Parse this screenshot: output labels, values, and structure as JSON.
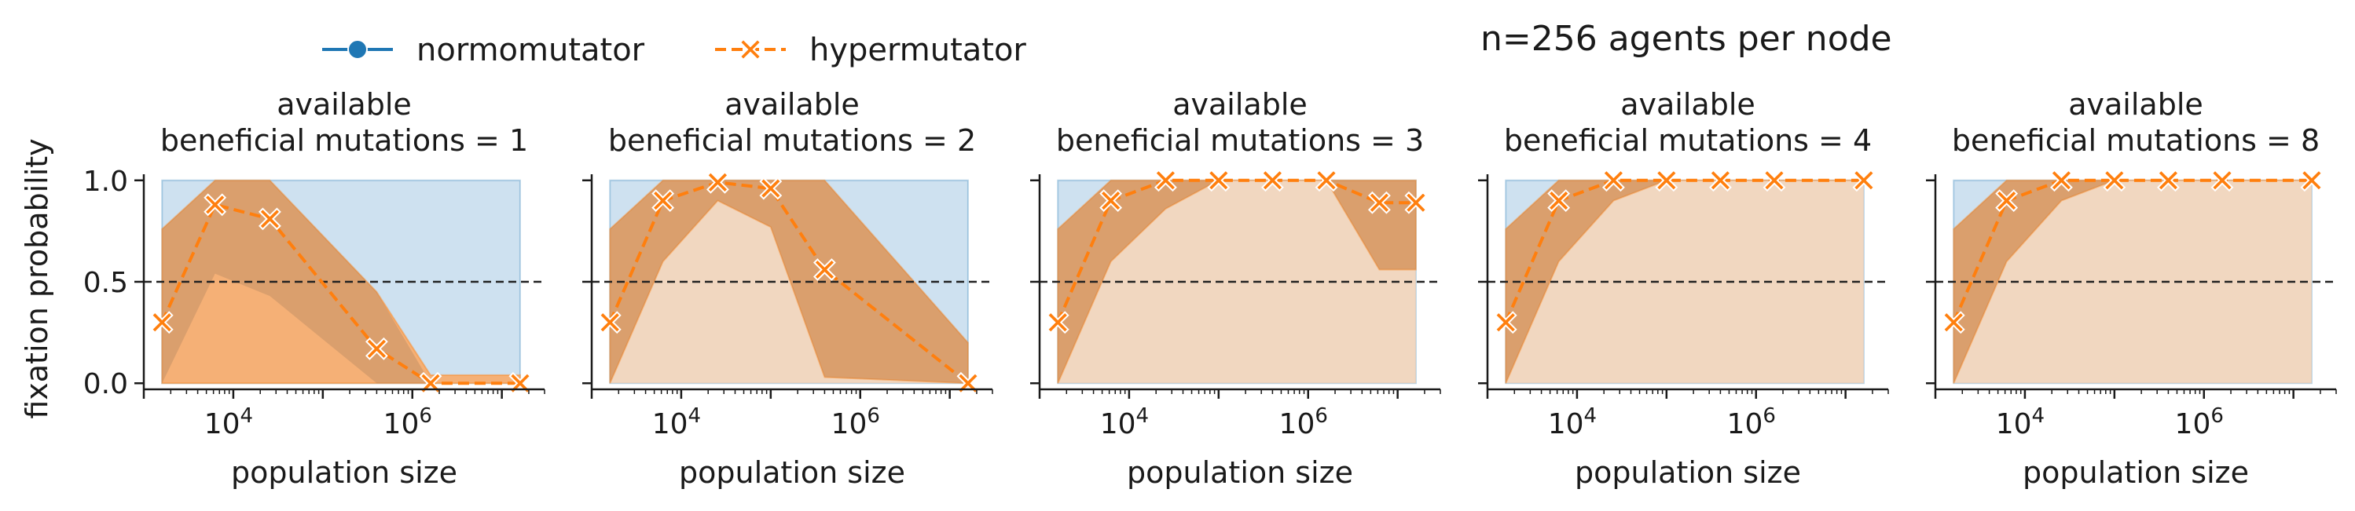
{
  "figure": {
    "suptitle": "n=256 agents per node",
    "ylabel": "fixation probability"
  },
  "legend": {
    "placement": "top-left",
    "items": [
      {
        "label": "normomutator",
        "color": "#1f77b4",
        "marker": "circle",
        "dash": "solid"
      },
      {
        "label": "hypermutator",
        "color": "#ff7f0e",
        "marker": "x",
        "dash": "dashed"
      }
    ]
  },
  "colors": {
    "normo": "#1f77b4",
    "hyper": "#ff7f0e",
    "normo_band": "#a6c8e4",
    "hyper_band": "#fcd3b0",
    "hyper_band_dark": "#f5a35e",
    "overlap_band": "#c89a78",
    "threshold": "#222222"
  },
  "chart_data": [
    {
      "type": "line",
      "title": "available\nbeneficial mutations = 1",
      "title_lines": [
        "available",
        "beneficial mutations = 1"
      ],
      "xlabel": "population size",
      "ylabel": "fixation probability",
      "xscale": "log",
      "xlim": [
        1000,
        30000000
      ],
      "ylim": [
        -0.03,
        1.03
      ],
      "yticks": [
        0.0,
        0.5,
        1.0
      ],
      "ytick_labels": [
        "0.0",
        "0.5",
        "1.0"
      ],
      "xticks": [
        10000,
        1000000
      ],
      "xtick_labels": [
        "10^4",
        "10^6"
      ],
      "threshold": 0.5,
      "x": [
        1600,
        6250,
        25600,
        100000,
        400000,
        1600000,
        6250000,
        16000000
      ],
      "series": [
        {
          "name": "hypermutator",
          "x": [
            1600,
            6250,
            25600,
            400000,
            1600000,
            16000000
          ],
          "y": [
            0.3,
            0.88,
            0.81,
            0.17,
            0.0,
            0.0
          ],
          "ci_outer": {
            "lower": [
              0.0,
              0.0,
              0.0,
              0.0,
              0.0,
              0.0
            ],
            "upper": [
              0.76,
              1.0,
              1.0,
              0.45,
              0.04,
              0.04
            ]
          },
          "ci_inner": {
            "lower": [
              0.0,
              0.54,
              0.43,
              0.0,
              0.0,
              0.0
            ],
            "upper": [
              0.76,
              1.0,
              1.0,
              0.45,
              0.0,
              0.0
            ]
          }
        },
        {
          "name": "normomutator",
          "band": {
            "lower": 0.0,
            "upper": 1.0
          }
        }
      ]
    },
    {
      "type": "line",
      "title": "available\nbeneficial mutations = 2",
      "title_lines": [
        "available",
        "beneficial mutations = 2"
      ],
      "xlabel": "population size",
      "xscale": "log",
      "xlim": [
        1000,
        30000000
      ],
      "ylim": [
        -0.03,
        1.03
      ],
      "yticks": [
        0.0,
        0.5,
        1.0
      ],
      "xticks": [
        10000,
        1000000
      ],
      "xtick_labels": [
        "10^4",
        "10^6"
      ],
      "threshold": 0.5,
      "series": [
        {
          "name": "hypermutator",
          "x": [
            1600,
            6250,
            25600,
            100000,
            400000,
            16000000
          ],
          "y": [
            0.3,
            0.9,
            0.99,
            0.96,
            0.56,
            0.0
          ],
          "ci_outer": {
            "lower": [
              0.0,
              0.6,
              0.9,
              0.77,
              0.03,
              0.0
            ],
            "upper": [
              0.76,
              1.0,
              1.0,
              1.0,
              1.0,
              0.2
            ]
          },
          "ci_inner": {
            "lower": [
              0.0,
              0.6,
              0.9,
              0.77,
              0.03,
              0.0
            ],
            "upper": [
              0.76,
              1.0,
              1.0,
              1.0,
              1.0,
              0.2
            ]
          }
        },
        {
          "name": "normomutator",
          "band": {
            "lower": 0.0,
            "upper": 1.0
          }
        }
      ]
    },
    {
      "type": "line",
      "title": "available\nbeneficial mutations = 3",
      "title_lines": [
        "available",
        "beneficial mutations = 3"
      ],
      "xlabel": "population size",
      "xscale": "log",
      "xlim": [
        1000,
        30000000
      ],
      "ylim": [
        -0.03,
        1.03
      ],
      "yticks": [
        0.0,
        0.5,
        1.0
      ],
      "xticks": [
        10000,
        1000000
      ],
      "xtick_labels": [
        "10^4",
        "10^6"
      ],
      "threshold": 0.5,
      "series": [
        {
          "name": "hypermutator",
          "x": [
            1600,
            6250,
            25600,
            100000,
            400000,
            1600000,
            6250000,
            16000000
          ],
          "y": [
            0.3,
            0.9,
            1.0,
            1.0,
            1.0,
            1.0,
            0.89,
            0.89
          ],
          "ci_outer": {
            "lower": [
              0.0,
              0.6,
              0.86,
              1.0,
              1.0,
              1.0,
              0.56,
              0.56
            ],
            "upper": [
              0.76,
              1.0,
              1.0,
              1.0,
              1.0,
              1.0,
              1.0,
              1.0
            ]
          },
          "ci_inner": {
            "lower": [
              0.0,
              0.6,
              0.86,
              1.0,
              1.0,
              1.0,
              0.56,
              0.56
            ],
            "upper": [
              0.76,
              1.0,
              1.0,
              1.0,
              1.0,
              1.0,
              1.0,
              1.0
            ]
          }
        },
        {
          "name": "normomutator",
          "band": {
            "lower": 0.0,
            "upper": 1.0
          }
        }
      ]
    },
    {
      "type": "line",
      "title": "available\nbeneficial mutations = 4",
      "title_lines": [
        "available",
        "beneficial mutations = 4"
      ],
      "xlabel": "population size",
      "xscale": "log",
      "xlim": [
        1000,
        30000000
      ],
      "ylim": [
        -0.03,
        1.03
      ],
      "yticks": [
        0.0,
        0.5,
        1.0
      ],
      "xticks": [
        10000,
        1000000
      ],
      "xtick_labels": [
        "10^4",
        "10^6"
      ],
      "threshold": 0.5,
      "series": [
        {
          "name": "hypermutator",
          "x": [
            1600,
            6250,
            25600,
            100000,
            400000,
            1600000,
            16000000
          ],
          "y": [
            0.3,
            0.9,
            1.0,
            1.0,
            1.0,
            1.0,
            1.0
          ],
          "ci_outer": {
            "lower": [
              0.0,
              0.6,
              0.9,
              1.0,
              1.0,
              1.0,
              1.0
            ],
            "upper": [
              0.76,
              1.0,
              1.0,
              1.0,
              1.0,
              1.0,
              1.0
            ]
          },
          "ci_inner": {
            "lower": [
              0.0,
              0.6,
              0.9,
              1.0,
              1.0,
              1.0,
              1.0
            ],
            "upper": [
              0.76,
              1.0,
              1.0,
              1.0,
              1.0,
              1.0,
              1.0
            ]
          }
        },
        {
          "name": "normomutator",
          "band": {
            "lower": 0.0,
            "upper": 1.0
          }
        }
      ]
    },
    {
      "type": "line",
      "title": "available\nbeneficial mutations = 8",
      "title_lines": [
        "available",
        "beneficial mutations = 8"
      ],
      "xlabel": "population size",
      "xscale": "log",
      "xlim": [
        1000,
        30000000
      ],
      "ylim": [
        -0.03,
        1.03
      ],
      "yticks": [
        0.0,
        0.5,
        1.0
      ],
      "xticks": [
        10000,
        1000000
      ],
      "xtick_labels": [
        "10^4",
        "10^6"
      ],
      "threshold": 0.5,
      "series": [
        {
          "name": "hypermutator",
          "x": [
            1600,
            6250,
            25600,
            100000,
            400000,
            1600000,
            16000000
          ],
          "y": [
            0.3,
            0.9,
            1.0,
            1.0,
            1.0,
            1.0,
            1.0
          ],
          "ci_outer": {
            "lower": [
              0.0,
              0.6,
              0.9,
              1.0,
              1.0,
              1.0,
              1.0
            ],
            "upper": [
              0.76,
              1.0,
              1.0,
              1.0,
              1.0,
              1.0,
              1.0
            ]
          },
          "ci_inner": {
            "lower": [
              0.0,
              0.6,
              0.9,
              1.0,
              1.0,
              1.0,
              1.0
            ],
            "upper": [
              0.76,
              1.0,
              1.0,
              1.0,
              1.0,
              1.0,
              1.0
            ]
          }
        },
        {
          "name": "normomutator",
          "band": {
            "lower": 0.0,
            "upper": 1.0
          }
        }
      ]
    }
  ]
}
